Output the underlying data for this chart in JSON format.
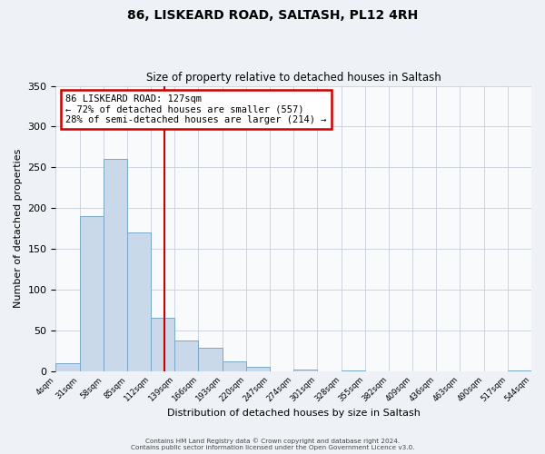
{
  "title": "86, LISKEARD ROAD, SALTASH, PL12 4RH",
  "subtitle": "Size of property relative to detached houses in Saltash",
  "xlabel": "Distribution of detached houses by size in Saltash",
  "ylabel": "Number of detached properties",
  "bin_edges": [
    4,
    31,
    58,
    85,
    112,
    139,
    166,
    193,
    220,
    247,
    274,
    301,
    328,
    355,
    382,
    409,
    436,
    463,
    490,
    517,
    544
  ],
  "bar_heights": [
    9,
    190,
    260,
    170,
    65,
    37,
    29,
    12,
    5,
    0,
    2,
    0,
    1,
    0,
    0,
    0,
    0,
    0,
    0,
    1
  ],
  "bar_color": "#c9d9ea",
  "bar_edge_color": "#7aa8c8",
  "vline_x": 127,
  "vline_color": "#cc0000",
  "annotation_line1": "86 LISKEARD ROAD: 127sqm",
  "annotation_line2": "← 72% of detached houses are smaller (557)",
  "annotation_line3": "28% of semi-detached houses are larger (214) →",
  "annotation_box_color": "#ffffff",
  "annotation_box_edge_color": "#cc0000",
  "tick_labels": [
    "4sqm",
    "31sqm",
    "58sqm",
    "85sqm",
    "112sqm",
    "139sqm",
    "166sqm",
    "193sqm",
    "220sqm",
    "247sqm",
    "274sqm",
    "301sqm",
    "328sqm",
    "355sqm",
    "382sqm",
    "409sqm",
    "436sqm",
    "463sqm",
    "490sqm",
    "517sqm",
    "544sqm"
  ],
  "ylim": [
    0,
    350
  ],
  "yticks": [
    0,
    50,
    100,
    150,
    200,
    250,
    300,
    350
  ],
  "footer_line1": "Contains HM Land Registry data © Crown copyright and database right 2024.",
  "footer_line2": "Contains public sector information licensed under the Open Government Licence v3.0.",
  "background_color": "#eef2f7",
  "plot_background_color": "#f8fafc",
  "grid_color": "#c8d0da"
}
